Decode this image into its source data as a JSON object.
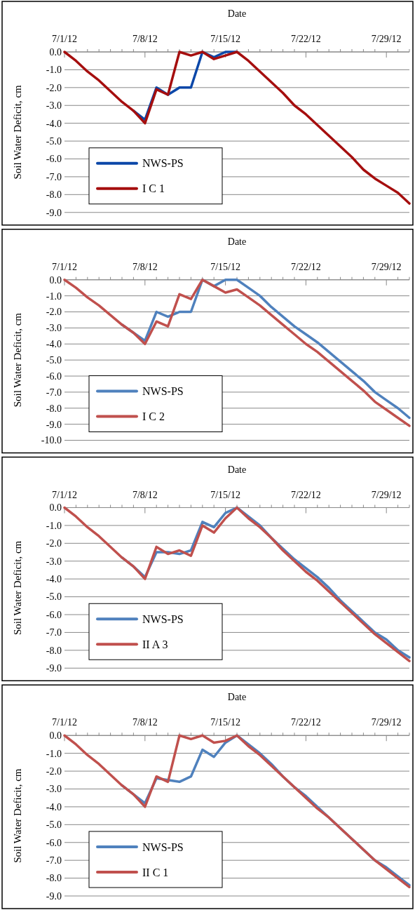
{
  "chart_data": [
    {
      "type": "line",
      "xlabel": "Date",
      "ylabel": "Soil Water Deficit, cm",
      "grid": "y",
      "legend": "bottom left",
      "marker": "none",
      "line_style": "solid",
      "x": [
        "--07-01",
        "--07-02",
        "--07-03",
        "--07-04",
        "--07-05",
        "--07-06",
        "--07-07",
        "--07-08",
        "--07-09",
        "--07-10",
        "--07-11",
        "--07-12",
        "--07-13",
        "--07-14",
        "--07-15",
        "--07-16",
        "--07-17",
        "--07-18",
        "--07-19",
        "--07-20",
        "--07-21",
        "--07-22",
        "--07-23",
        "--07-24",
        "--07-25",
        "--07-26",
        "--07-27",
        "--07-28",
        "--07-29",
        "--07-30",
        "--07-31"
      ],
      "xlim": [
        "--07-01",
        "--07-31"
      ],
      "xticks": [
        {
          "value": "--07-01",
          "label": "7/1/12"
        },
        {
          "value": "--07-02",
          "label": null
        },
        {
          "value": "--07-03",
          "label": null
        },
        {
          "value": "--07-04",
          "label": null
        },
        {
          "value": "--07-05",
          "label": null
        },
        {
          "value": "--07-06",
          "label": null
        },
        {
          "value": "--07-07",
          "label": null
        },
        {
          "value": "--07-08",
          "label": "7/8/12"
        },
        {
          "value": "--07-09",
          "label": null
        },
        {
          "value": "--07-10",
          "label": null
        },
        {
          "value": "--07-11",
          "label": null
        },
        {
          "value": "--07-12",
          "label": null
        },
        {
          "value": "--07-13",
          "label": null
        },
        {
          "value": "--07-14",
          "label": null
        },
        {
          "value": "--07-15",
          "label": "7/15/12"
        },
        {
          "value": "--07-16",
          "label": null
        },
        {
          "value": "--07-17",
          "label": null
        },
        {
          "value": "--07-18",
          "label": null
        },
        {
          "value": "--07-19",
          "label": null
        },
        {
          "value": "--07-20",
          "label": null
        },
        {
          "value": "--07-21",
          "label": null
        },
        {
          "value": "--07-22",
          "label": "7/22/12"
        },
        {
          "value": "--07-23",
          "label": null
        },
        {
          "value": "--07-24",
          "label": null
        },
        {
          "value": "--07-25",
          "label": null
        },
        {
          "value": "--07-26",
          "label": null
        },
        {
          "value": "--07-27",
          "label": null
        },
        {
          "value": "--07-28",
          "label": null
        },
        {
          "value": "--07-29",
          "label": "7/29/12"
        },
        {
          "value": "--07-30",
          "label": null
        },
        {
          "value": "--07-31",
          "label": null
        }
      ],
      "ylim": [
        -9,
        0
      ],
      "yticks": [
        {
          "value": -9,
          "label": "-9.0"
        },
        {
          "value": -8,
          "label": "-8.0"
        },
        {
          "value": -7,
          "label": "-7.0"
        },
        {
          "value": -6,
          "label": "-6.0"
        },
        {
          "value": -5,
          "label": "-5.0"
        },
        {
          "value": -4,
          "label": "-4.0"
        },
        {
          "value": -3,
          "label": "-3.0"
        },
        {
          "value": -2,
          "label": "-2.0"
        },
        {
          "value": -1,
          "label": "-1.0"
        },
        {
          "value": 0,
          "label": "0.0"
        }
      ],
      "series": [
        {
          "name": "NWS-PS",
          "color": "#0b47a8",
          "values": [
            null,
            null,
            null,
            null,
            null,
            null,
            -3.3,
            -3.8,
            -2.0,
            -2.4,
            -2.0,
            -2.0,
            0,
            -0.3,
            0,
            0,
            null,
            null,
            null,
            null,
            null,
            null,
            null,
            null,
            null,
            null,
            null,
            null,
            null,
            null,
            null
          ]
        },
        {
          "name": "I C 1",
          "color": "#a50e0e",
          "values": [
            0,
            -0.5,
            -1.1,
            -1.6,
            -2.2,
            -2.8,
            -3.3,
            -4.0,
            -2.1,
            -2.4,
            0,
            -0.2,
            0,
            -0.4,
            -0.2,
            0,
            -0.5,
            -1.1,
            -1.7,
            -2.3,
            -3.0,
            -3.5,
            -4.1,
            -4.7,
            -5.3,
            -5.9,
            -6.6,
            -7.1,
            -7.5,
            -7.9,
            -8.5
          ]
        }
      ]
    },
    {
      "type": "line",
      "xlabel": "Date",
      "ylabel": "Soil Water Deficit, cm",
      "grid": "y",
      "legend": "bottom left",
      "marker": "none",
      "line_style": "solid",
      "x": [
        "--07-01",
        "--07-02",
        "--07-03",
        "--07-04",
        "--07-05",
        "--07-06",
        "--07-07",
        "--07-08",
        "--07-09",
        "--07-10",
        "--07-11",
        "--07-12",
        "--07-13",
        "--07-14",
        "--07-15",
        "--07-16",
        "--07-17",
        "--07-18",
        "--07-19",
        "--07-20",
        "--07-21",
        "--07-22",
        "--07-23",
        "--07-24",
        "--07-25",
        "--07-26",
        "--07-27",
        "--07-28",
        "--07-29",
        "--07-30",
        "--07-31"
      ],
      "xlim": [
        "--07-01",
        "--07-31"
      ],
      "xticks": [
        {
          "value": "--07-01",
          "label": "7/1/12"
        },
        {
          "value": "--07-02",
          "label": null
        },
        {
          "value": "--07-03",
          "label": null
        },
        {
          "value": "--07-04",
          "label": null
        },
        {
          "value": "--07-05",
          "label": null
        },
        {
          "value": "--07-06",
          "label": null
        },
        {
          "value": "--07-07",
          "label": null
        },
        {
          "value": "--07-08",
          "label": "7/8/12"
        },
        {
          "value": "--07-09",
          "label": null
        },
        {
          "value": "--07-10",
          "label": null
        },
        {
          "value": "--07-11",
          "label": null
        },
        {
          "value": "--07-12",
          "label": null
        },
        {
          "value": "--07-13",
          "label": null
        },
        {
          "value": "--07-14",
          "label": null
        },
        {
          "value": "--07-15",
          "label": "7/15/12"
        },
        {
          "value": "--07-16",
          "label": null
        },
        {
          "value": "--07-17",
          "label": null
        },
        {
          "value": "--07-18",
          "label": null
        },
        {
          "value": "--07-19",
          "label": null
        },
        {
          "value": "--07-20",
          "label": null
        },
        {
          "value": "--07-21",
          "label": null
        },
        {
          "value": "--07-22",
          "label": "7/22/12"
        },
        {
          "value": "--07-23",
          "label": null
        },
        {
          "value": "--07-24",
          "label": null
        },
        {
          "value": "--07-25",
          "label": null
        },
        {
          "value": "--07-26",
          "label": null
        },
        {
          "value": "--07-27",
          "label": null
        },
        {
          "value": "--07-28",
          "label": null
        },
        {
          "value": "--07-29",
          "label": "7/29/12"
        },
        {
          "value": "--07-30",
          "label": null
        },
        {
          "value": "--07-31",
          "label": null
        }
      ],
      "ylim": [
        -10,
        0
      ],
      "yticks": [
        {
          "value": -10,
          "label": "-10.0"
        },
        {
          "value": -9,
          "label": "-9.0"
        },
        {
          "value": -8,
          "label": "-8.0"
        },
        {
          "value": -7,
          "label": "-7.0"
        },
        {
          "value": -6,
          "label": "-6.0"
        },
        {
          "value": -5,
          "label": "-5.0"
        },
        {
          "value": -4,
          "label": "-4.0"
        },
        {
          "value": -3,
          "label": "-3.0"
        },
        {
          "value": -2,
          "label": "-2.0"
        },
        {
          "value": -1,
          "label": "-1.0"
        },
        {
          "value": 0,
          "label": "0.0"
        }
      ],
      "series": [
        {
          "name": "NWS-PS",
          "color": "#4f81bd",
          "values": [
            null,
            null,
            null,
            null,
            null,
            -2.8,
            -3.3,
            -3.8,
            -2.0,
            -2.3,
            -2.0,
            -2.0,
            0,
            -0.4,
            0,
            0,
            -0.5,
            -1.0,
            -1.7,
            -2.3,
            -2.9,
            -3.4,
            -3.9,
            -4.5,
            -5.1,
            -5.7,
            -6.3,
            -7.0,
            -7.5,
            -8.0,
            -8.6
          ]
        },
        {
          "name": "I C 2",
          "color": "#c0504d",
          "values": [
            0,
            -0.5,
            -1.1,
            -1.6,
            -2.2,
            -2.8,
            -3.3,
            -4.0,
            -2.6,
            -2.9,
            -0.9,
            -1.2,
            0,
            -0.4,
            -0.8,
            -0.6,
            -1.1,
            -1.6,
            -2.2,
            -2.8,
            -3.4,
            -4.0,
            -4.5,
            -5.1,
            -5.7,
            -6.3,
            -6.9,
            -7.6,
            -8.1,
            -8.6,
            -9.1
          ]
        }
      ]
    },
    {
      "type": "line",
      "xlabel": "Date",
      "ylabel": "Soil Water Deficit, cm",
      "grid": "y",
      "legend": "bottom left",
      "marker": "none",
      "line_style": "solid",
      "x": [
        "--07-01",
        "--07-02",
        "--07-03",
        "--07-04",
        "--07-05",
        "--07-06",
        "--07-07",
        "--07-08",
        "--07-09",
        "--07-10",
        "--07-11",
        "--07-12",
        "--07-13",
        "--07-14",
        "--07-15",
        "--07-16",
        "--07-17",
        "--07-18",
        "--07-19",
        "--07-20",
        "--07-21",
        "--07-22",
        "--07-23",
        "--07-24",
        "--07-25",
        "--07-26",
        "--07-27",
        "--07-28",
        "--07-29",
        "--07-30",
        "--07-31"
      ],
      "xlim": [
        "--07-01",
        "--07-31"
      ],
      "xticks": [
        {
          "value": "--07-01",
          "label": "7/1/12"
        },
        {
          "value": "--07-02",
          "label": null
        },
        {
          "value": "--07-03",
          "label": null
        },
        {
          "value": "--07-04",
          "label": null
        },
        {
          "value": "--07-05",
          "label": null
        },
        {
          "value": "--07-06",
          "label": null
        },
        {
          "value": "--07-07",
          "label": null
        },
        {
          "value": "--07-08",
          "label": "7/8/12"
        },
        {
          "value": "--07-09",
          "label": null
        },
        {
          "value": "--07-10",
          "label": null
        },
        {
          "value": "--07-11",
          "label": null
        },
        {
          "value": "--07-12",
          "label": null
        },
        {
          "value": "--07-13",
          "label": null
        },
        {
          "value": "--07-14",
          "label": null
        },
        {
          "value": "--07-15",
          "label": "7/15/12"
        },
        {
          "value": "--07-16",
          "label": null
        },
        {
          "value": "--07-17",
          "label": null
        },
        {
          "value": "--07-18",
          "label": null
        },
        {
          "value": "--07-19",
          "label": null
        },
        {
          "value": "--07-20",
          "label": null
        },
        {
          "value": "--07-21",
          "label": null
        },
        {
          "value": "--07-22",
          "label": "7/22/12"
        },
        {
          "value": "--07-23",
          "label": null
        },
        {
          "value": "--07-24",
          "label": null
        },
        {
          "value": "--07-25",
          "label": null
        },
        {
          "value": "--07-26",
          "label": null
        },
        {
          "value": "--07-27",
          "label": null
        },
        {
          "value": "--07-28",
          "label": null
        },
        {
          "value": "--07-29",
          "label": "7/29/12"
        },
        {
          "value": "--07-30",
          "label": null
        },
        {
          "value": "--07-31",
          "label": null
        }
      ],
      "ylim": [
        -9,
        0
      ],
      "yticks": [
        {
          "value": -9,
          "label": "-9.0"
        },
        {
          "value": -8,
          "label": "-8.0"
        },
        {
          "value": -7,
          "label": "-7.0"
        },
        {
          "value": -6,
          "label": "-6.0"
        },
        {
          "value": -5,
          "label": "-5.0"
        },
        {
          "value": -4,
          "label": "-4.0"
        },
        {
          "value": -3,
          "label": "-3.0"
        },
        {
          "value": -2,
          "label": "-2.0"
        },
        {
          "value": -1,
          "label": "-1.0"
        },
        {
          "value": 0,
          "label": "0.0"
        }
      ],
      "series": [
        {
          "name": "NWS-PS",
          "color": "#4f81bd",
          "values": [
            null,
            null,
            null,
            null,
            null,
            -2.8,
            -3.3,
            -3.9,
            -2.5,
            -2.5,
            -2.6,
            -2.4,
            -0.8,
            -1.1,
            -0.3,
            0,
            -0.5,
            -1.0,
            -1.7,
            -2.3,
            -2.9,
            -3.4,
            -3.9,
            -4.5,
            -5.2,
            -5.8,
            -6.4,
            -7.0,
            -7.4,
            -8.0,
            -8.4
          ]
        },
        {
          "name": "II A 3",
          "color": "#c0504d",
          "values": [
            0,
            -0.5,
            -1.1,
            -1.6,
            -2.2,
            -2.8,
            -3.3,
            -4.0,
            -2.2,
            -2.6,
            -2.4,
            -2.7,
            -1.0,
            -1.4,
            -0.6,
            0,
            -0.6,
            -1.1,
            -1.7,
            -2.4,
            -3.0,
            -3.6,
            -4.1,
            -4.7,
            -5.3,
            -5.9,
            -6.5,
            -7.1,
            -7.6,
            -8.1,
            -8.6
          ]
        }
      ]
    },
    {
      "type": "line",
      "xlabel": "Date",
      "ylabel": "Soil Water Deficit, cm",
      "grid": "y",
      "legend": "bottom left",
      "marker": "none",
      "line_style": "solid",
      "x": [
        "--07-01",
        "--07-02",
        "--07-03",
        "--07-04",
        "--07-05",
        "--07-06",
        "--07-07",
        "--07-08",
        "--07-09",
        "--07-10",
        "--07-11",
        "--07-12",
        "--07-13",
        "--07-14",
        "--07-15",
        "--07-16",
        "--07-17",
        "--07-18",
        "--07-19",
        "--07-20",
        "--07-21",
        "--07-22",
        "--07-23",
        "--07-24",
        "--07-25",
        "--07-26",
        "--07-27",
        "--07-28",
        "--07-29",
        "--07-30",
        "--07-31"
      ],
      "xlim": [
        "--07-01",
        "--07-31"
      ],
      "xticks": [
        {
          "value": "--07-01",
          "label": "7/1/12"
        },
        {
          "value": "--07-02",
          "label": null
        },
        {
          "value": "--07-03",
          "label": null
        },
        {
          "value": "--07-04",
          "label": null
        },
        {
          "value": "--07-05",
          "label": null
        },
        {
          "value": "--07-06",
          "label": null
        },
        {
          "value": "--07-07",
          "label": null
        },
        {
          "value": "--07-08",
          "label": "7/8/12"
        },
        {
          "value": "--07-09",
          "label": null
        },
        {
          "value": "--07-10",
          "label": null
        },
        {
          "value": "--07-11",
          "label": null
        },
        {
          "value": "--07-12",
          "label": null
        },
        {
          "value": "--07-13",
          "label": null
        },
        {
          "value": "--07-14",
          "label": null
        },
        {
          "value": "--07-15",
          "label": "7/15/12"
        },
        {
          "value": "--07-16",
          "label": null
        },
        {
          "value": "--07-17",
          "label": null
        },
        {
          "value": "--07-18",
          "label": null
        },
        {
          "value": "--07-19",
          "label": null
        },
        {
          "value": "--07-20",
          "label": null
        },
        {
          "value": "--07-21",
          "label": null
        },
        {
          "value": "--07-22",
          "label": "7/22/12"
        },
        {
          "value": "--07-23",
          "label": null
        },
        {
          "value": "--07-24",
          "label": null
        },
        {
          "value": "--07-25",
          "label": null
        },
        {
          "value": "--07-26",
          "label": null
        },
        {
          "value": "--07-27",
          "label": null
        },
        {
          "value": "--07-28",
          "label": null
        },
        {
          "value": "--07-29",
          "label": "7/29/12"
        },
        {
          "value": "--07-30",
          "label": null
        },
        {
          "value": "--07-31",
          "label": null
        }
      ],
      "ylim": [
        -9,
        0
      ],
      "yticks": [
        {
          "value": -9,
          "label": "-9.0"
        },
        {
          "value": -8,
          "label": "-8.0"
        },
        {
          "value": -7,
          "label": "-7.0"
        },
        {
          "value": -6,
          "label": "-6.0"
        },
        {
          "value": -5,
          "label": "-5.0"
        },
        {
          "value": -4,
          "label": "-4.0"
        },
        {
          "value": -3,
          "label": "-3.0"
        },
        {
          "value": -2,
          "label": "-2.0"
        },
        {
          "value": -1,
          "label": "-1.0"
        },
        {
          "value": 0,
          "label": "0.0"
        }
      ],
      "series": [
        {
          "name": "NWS-PS",
          "color": "#4f81bd",
          "values": [
            null,
            null,
            null,
            null,
            null,
            -2.8,
            -3.3,
            -3.8,
            -2.4,
            -2.5,
            -2.6,
            -2.3,
            -0.8,
            -1.2,
            -0.4,
            0,
            -0.5,
            -1.0,
            -1.6,
            -2.3,
            -2.9,
            -3.4,
            -4.0,
            -4.6,
            -5.2,
            -5.8,
            -6.4,
            -7.0,
            -7.4,
            -7.9,
            -8.4
          ]
        },
        {
          "name": "II C 1",
          "color": "#c0504d",
          "values": [
            0,
            -0.5,
            -1.1,
            -1.6,
            -2.2,
            -2.8,
            -3.3,
            -4.0,
            -2.3,
            -2.6,
            0,
            -0.2,
            0,
            -0.4,
            -0.3,
            0,
            -0.6,
            -1.1,
            -1.7,
            -2.3,
            -2.9,
            -3.5,
            -4.1,
            -4.6,
            -5.2,
            -5.8,
            -6.4,
            -7.0,
            -7.5,
            -8.0,
            -8.5
          ]
        }
      ]
    }
  ]
}
